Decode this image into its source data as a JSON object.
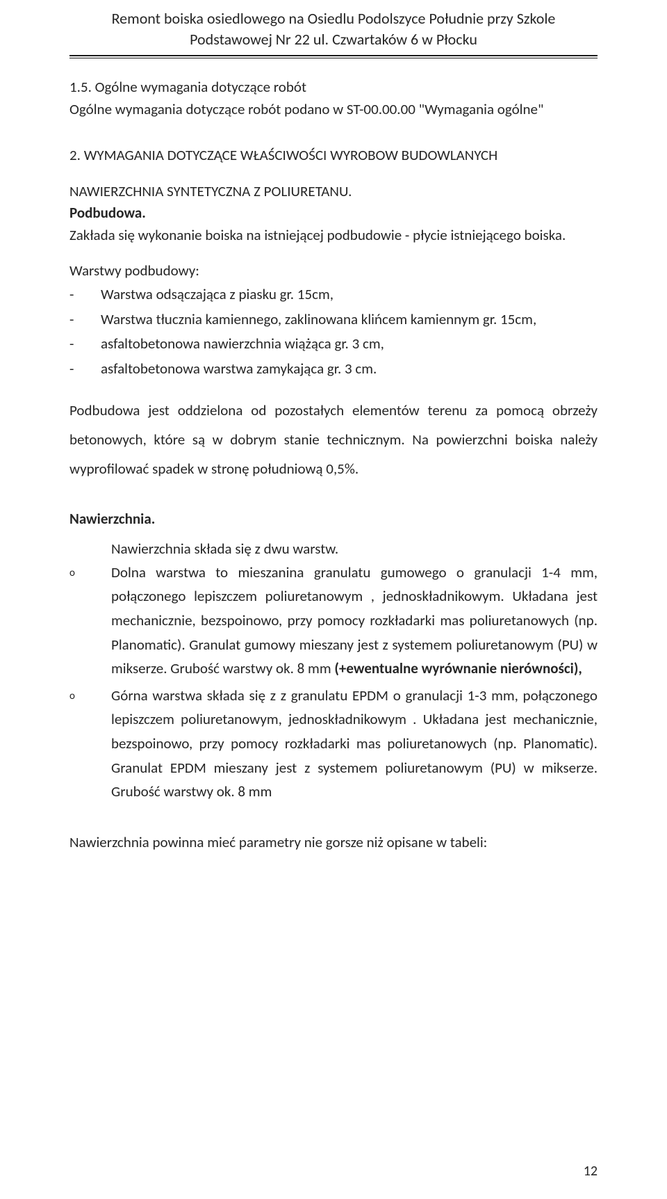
{
  "header": {
    "title": "Remont boiska osiedlowego na Osiedlu Podolszyce Południe przy Szkole Podstawowej Nr 22 ul. Czwartaków 6 w Płocku"
  },
  "s15": {
    "heading": "1.5. Ogólne wymagania dotyczące robót",
    "text": "Ogólne wymagania dotyczące robót podano w ST-00.00.00 \"Wymagania ogólne\""
  },
  "s2": {
    "heading": "2. WYMAGANIA DOTYCZĄCE WŁAŚCIWOŚCI WYROBOW BUDOWLANYCH",
    "sub1": "NAWIERZCHNIA SYNTETYCZNA Z POLIURETANU.",
    "sub2": "Podbudowa.",
    "p1": "Zakłada się wykonanie boiska na istniejącej podbudowie - płycie istniejącego boiska.",
    "p2": "Warstwy podbudowy:",
    "layers": [
      "Warstwa odsączająca z piasku gr. 15cm,",
      "Warstwa tłucznia kamiennego, zaklinowana klińcem kamiennym gr. 15cm,",
      "asfaltobetonowa nawierzchnia wiążąca gr. 3 cm,",
      "asfaltobetonowa warstwa zamykająca gr. 3 cm."
    ],
    "p3": "Podbudowa jest oddzielona od pozostałych elementów terenu za pomocą obrzeży betonowych, które są w dobrym stanie technicznym. Na powierzchni boiska należy wyprofilować spadek w stronę południową 0,5%.",
    "naw_heading": "Nawierzchnia.",
    "naw_intro": "Nawierzchnia składa się  z dwu warstw.",
    "naw_items": [
      "Dolna warstwa to mieszanina granulatu gumowego   o granulacji  1-4 mm, połączonego lepiszczem poliuretanowym , jednoskładnikowym. Układana jest mechanicznie, bezspoinowo, przy pomocy rozkładarki mas poliuretanowych (np. Planomatic). Granulat gumowy  mieszany jest z systemem poliuretanowym (PU)  w mikserze.  Grubość warstwy ok. 8 mm <b>(+ewentualne wyrównanie nierówności),</b>",
      "Górna warstwa  składa się z  z granulatu EPDM  o granulacji 1-3 mm, połączonego lepiszczem poliuretanowym, jednoskładnikowym . Układana jest mechanicznie, bezspoinowo, przy pomocy rozkładarki mas poliuretanowych (np. Planomatic). Granulat EPDM mieszany jest z systemem poliuretanowym (PU)  w mikserze. Grubość warstwy ok. 8 mm"
    ],
    "p4": "Nawierzchnia powinna mieć parametry nie gorsze niż opisane w tabeli:"
  },
  "page_number": "12"
}
